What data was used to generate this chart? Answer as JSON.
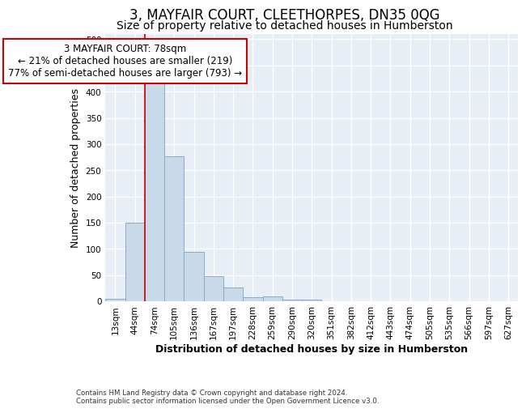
{
  "title": "3, MAYFAIR COURT, CLEETHORPES, DN35 0QG",
  "subtitle": "Size of property relative to detached houses in Humberston",
  "xlabel": "Distribution of detached houses by size in Humberston",
  "ylabel": "Number of detached properties",
  "footer_line1": "Contains HM Land Registry data © Crown copyright and database right 2024.",
  "footer_line2": "Contains public sector information licensed under the Open Government Licence v3.0.",
  "bar_labels": [
    "13sqm",
    "44sqm",
    "74sqm",
    "105sqm",
    "136sqm",
    "167sqm",
    "197sqm",
    "228sqm",
    "259sqm",
    "290sqm",
    "320sqm",
    "351sqm",
    "382sqm",
    "412sqm",
    "443sqm",
    "474sqm",
    "505sqm",
    "535sqm",
    "566sqm",
    "597sqm",
    "627sqm"
  ],
  "bar_values": [
    5,
    150,
    420,
    277,
    95,
    48,
    27,
    7,
    10,
    3,
    3,
    0,
    0,
    0,
    0,
    0,
    0,
    0,
    0,
    0,
    0
  ],
  "bar_color": "#c8daea",
  "bar_edge_color": "#8aaac8",
  "property_line_x": 2.0,
  "annotation_title": "3 MAYFAIR COURT: 78sqm",
  "annotation_line2": "← 21% of detached houses are smaller (219)",
  "annotation_line3": "77% of semi-detached houses are larger (793) →",
  "annotation_box_color": "#cc0000",
  "ylim": [
    0,
    510
  ],
  "yticks": [
    0,
    50,
    100,
    150,
    200,
    250,
    300,
    350,
    400,
    450,
    500
  ],
  "background_color": "#ffffff",
  "plot_bg_color": "#e8eef5",
  "grid_color": "#ffffff",
  "title_fontsize": 12,
  "subtitle_fontsize": 10,
  "axis_label_fontsize": 9,
  "tick_fontsize": 7.5,
  "annotation_fontsize": 8.5
}
